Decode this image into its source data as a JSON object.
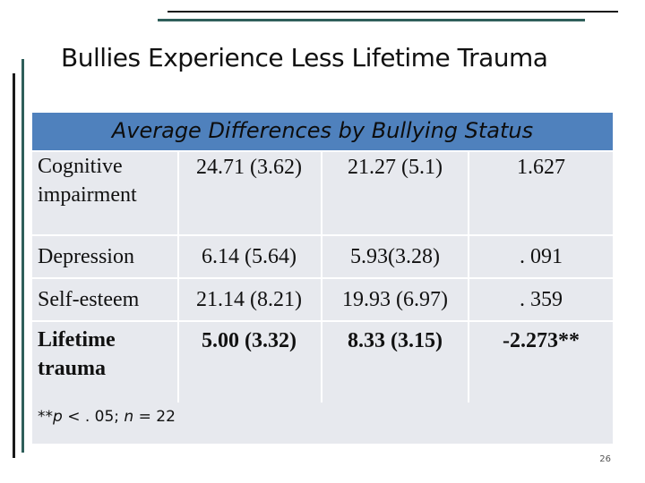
{
  "slide": {
    "title": "Bullies Experience Less Lifetime Trauma",
    "page_number": "26"
  },
  "table": {
    "caption": "Average Differences by Bullying Status",
    "rows": [
      {
        "label": "Cognitive impairment",
        "col1": "24.71 (3.62)",
        "col2": "21.27 (5.1)",
        "col3": "1.627"
      },
      {
        "label": "Depression",
        "col1": "6.14 (5.64)",
        "col2": "5.93(3.28)",
        "col3": ". 091"
      },
      {
        "label": "Self-esteem",
        "col1": "21.14 (8.21)",
        "col2": "19.93 (6.97)",
        "col3": ". 359"
      },
      {
        "label": "Lifetime trauma",
        "col1": "5.00 (3.32)",
        "col2": "8.33 (3.15)",
        "col3": "-2.273**"
      }
    ],
    "footnote": {
      "prefix": "**",
      "p_symbol": "p",
      "p_text": " < . 05; ",
      "n_symbol": "n",
      "n_text": " = 22"
    }
  },
  "colors": {
    "header_bg": "#4f81bd",
    "table_bg": "#e7e9ee",
    "accent_rule": "#2f5f5a"
  }
}
